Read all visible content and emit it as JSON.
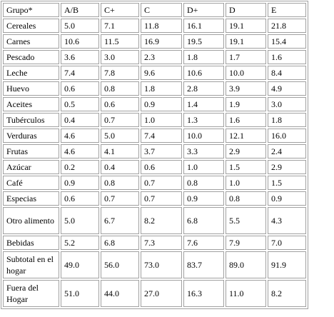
{
  "table": {
    "headers": [
      "Grupo*",
      "A/B",
      "C+",
      "C",
      "D+",
      "D",
      "E"
    ],
    "rows": [
      [
        "Cereales",
        "5.0",
        "7.1",
        "11.8",
        "16.1",
        "19.1",
        "21.8"
      ],
      [
        "Carnes",
        "10.6",
        "11.5",
        "16.9",
        "19.5",
        "19.1",
        "15.4"
      ],
      [
        "Pescado",
        "3.6",
        "3.0",
        "2.3",
        "1.8",
        "1.7",
        "1.6"
      ],
      [
        "Leche",
        "7.4",
        "7.8",
        "9.6",
        "10.6",
        "10.0",
        "8.4"
      ],
      [
        "Huevo",
        "0.6",
        "0.8",
        "1.8",
        "2.8",
        "3.9",
        "4.9"
      ],
      [
        "Aceites",
        "0.5",
        "0.6",
        "0.9",
        "1.4",
        "1.9",
        "3.0"
      ],
      [
        "Tubérculos",
        "0.4",
        "0.7",
        "1.0",
        "1.3",
        "1.6",
        "1.8"
      ],
      [
        "Verduras",
        "4.6",
        "5.0",
        "7.4",
        "10.0",
        "12.1",
        "16.0"
      ],
      [
        "Frutas",
        "4.6",
        "4.1",
        "3.7",
        "3.3",
        "2.9",
        "2.4"
      ],
      [
        "Azúcar",
        "0.2",
        "0.4",
        "0.6",
        "1.0",
        "1.5",
        "2.9"
      ],
      [
        "Café",
        "0.9",
        "0.8",
        "0.7",
        "0.8",
        "1.0",
        "1.5"
      ],
      [
        "Especias",
        "0.6",
        "0.7",
        "0.7",
        "0.9",
        "0.8",
        "0.9"
      ],
      [
        "Otro alimento",
        "5.0",
        "6.7",
        "8.2",
        "6.8",
        "5.5",
        "4.3"
      ],
      [
        "Bebidas",
        "5.2",
        "6.8",
        "7.3",
        "7.6",
        "7.9",
        "7.0"
      ],
      [
        "Subtotal en el hogar",
        "49.0",
        "56.0",
        "73.0",
        "83.7",
        "89.0",
        "91.9"
      ],
      [
        "Fuera del Hogar",
        "51.0",
        "44.0",
        "27.0",
        "16.3",
        "11.0",
        "8.2"
      ]
    ]
  }
}
